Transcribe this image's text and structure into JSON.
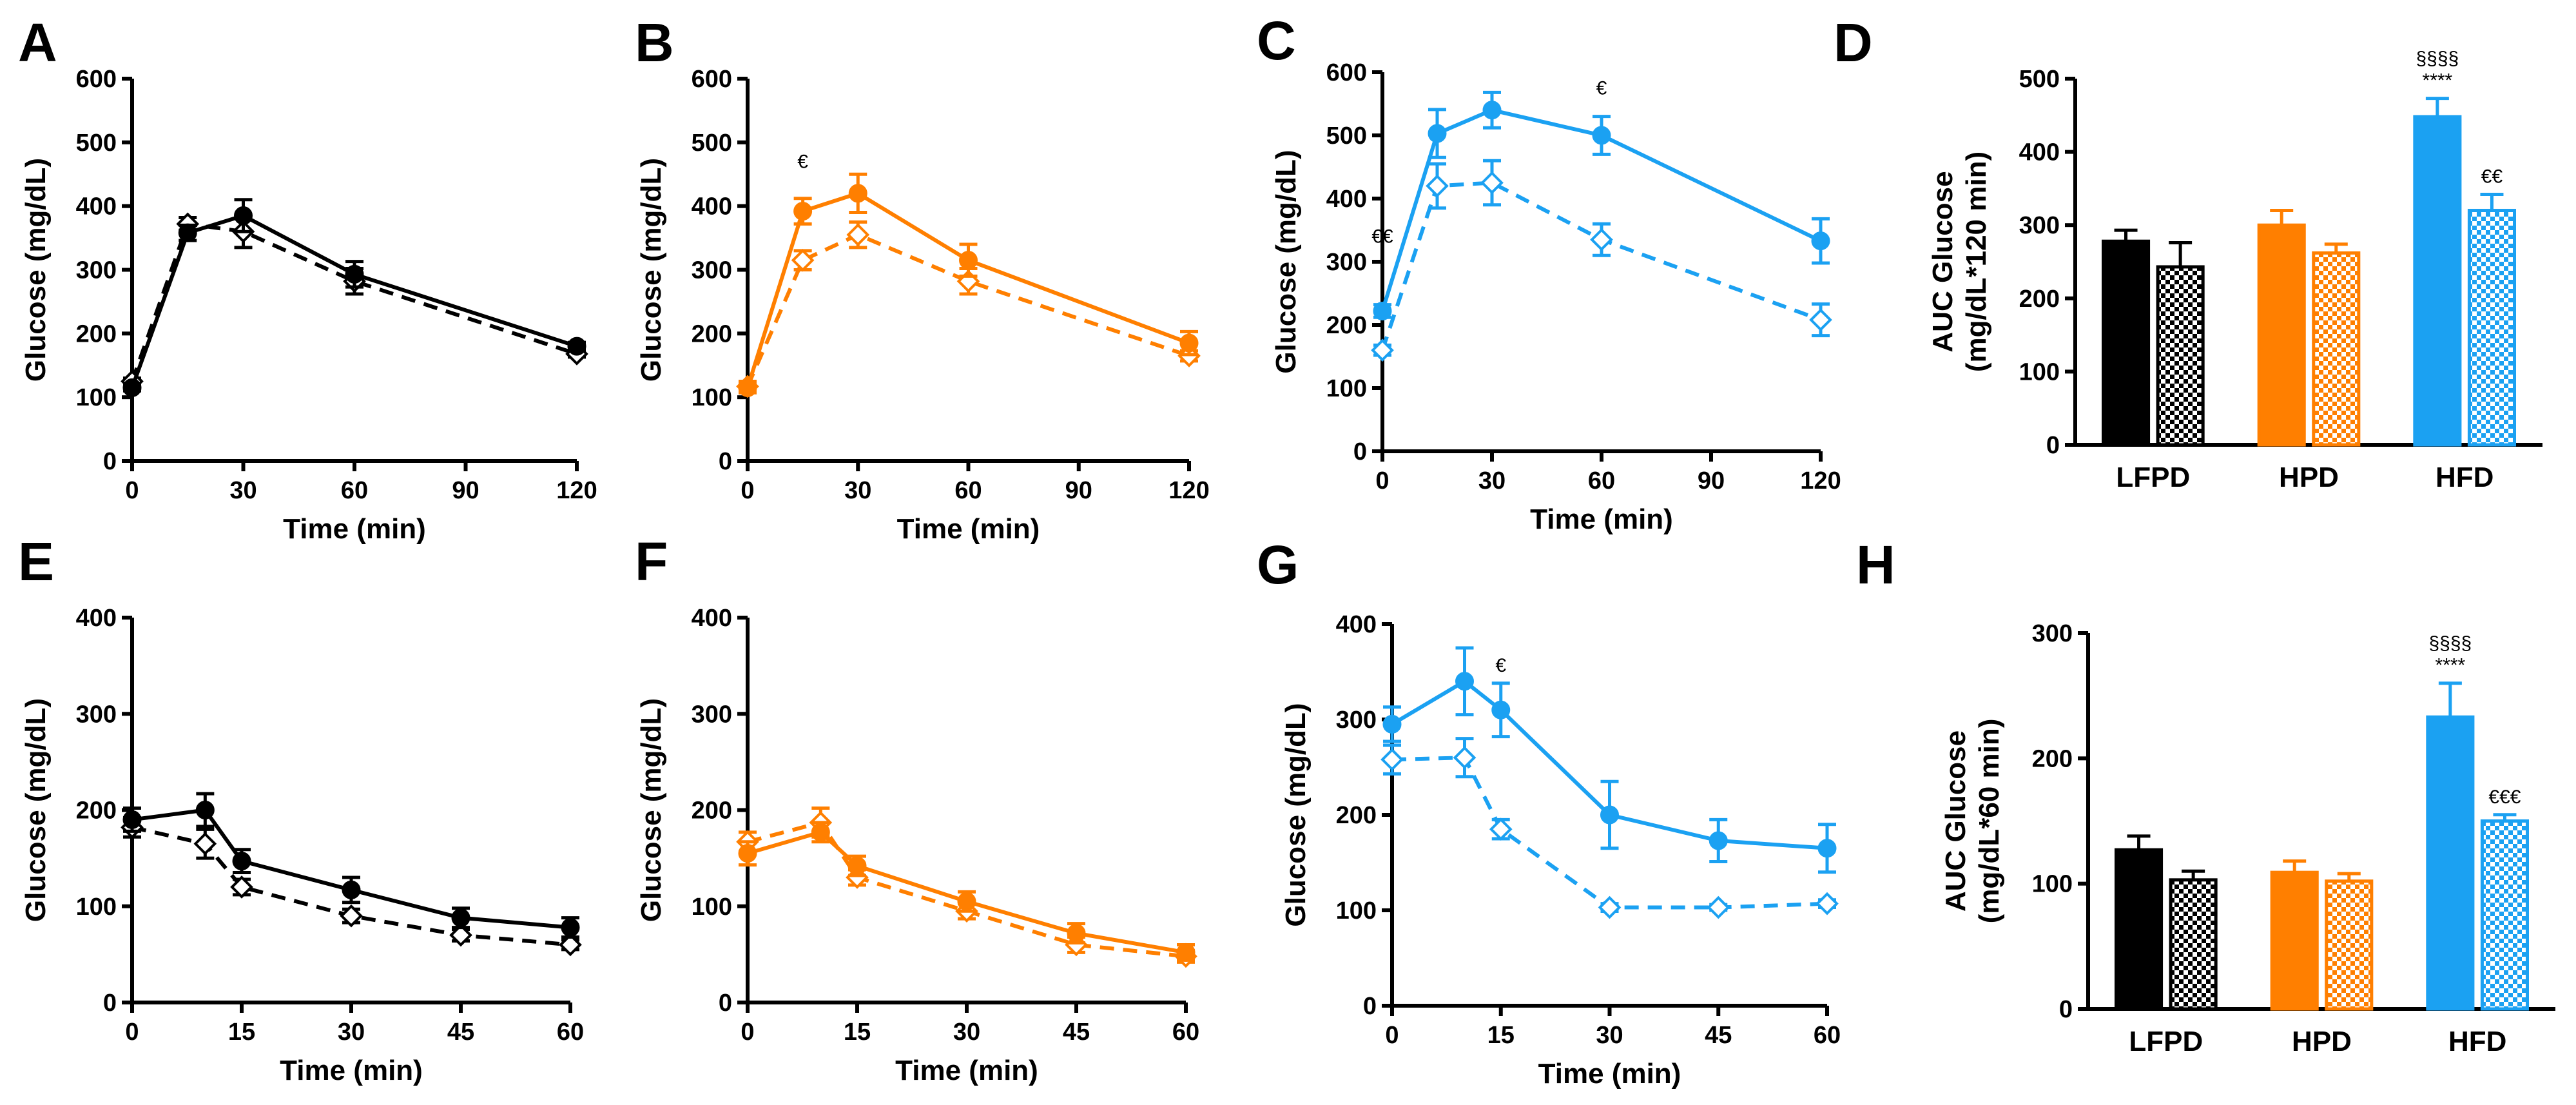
{
  "colors": {
    "lfpd": "#000000",
    "hpd": "#ff7f00",
    "hfd": "#1ba1f2"
  },
  "chart_data": [
    {
      "panel": "A",
      "type": "line",
      "color": "#000000",
      "x": [
        0,
        15,
        30,
        60,
        120
      ],
      "xlim": [
        0,
        120
      ],
      "xticks": [
        0,
        30,
        60,
        90,
        120
      ],
      "ylim": [
        0,
        600
      ],
      "yticks": [
        0,
        100,
        200,
        300,
        400,
        500,
        600
      ],
      "xlabel": "Time (min)",
      "ylabel": "Glucose (mg/dL)",
      "series": [
        {
          "style": "solid",
          "marker": "filled-circle",
          "values": [
            115,
            358,
            385,
            293,
            180
          ],
          "errors": [
            5,
            12,
            25,
            20,
            6
          ]
        },
        {
          "style": "dashed",
          "marker": "open-diamond",
          "values": [
            125,
            372,
            360,
            282,
            168
          ],
          "errors": [
            5,
            10,
            25,
            20,
            5
          ]
        }
      ],
      "annotations": []
    },
    {
      "panel": "B",
      "type": "line",
      "color": "#ff7f00",
      "x": [
        0,
        15,
        30,
        60,
        120
      ],
      "xlim": [
        0,
        120
      ],
      "xticks": [
        0,
        30,
        60,
        90,
        120
      ],
      "ylim": [
        0,
        600
      ],
      "yticks": [
        0,
        100,
        200,
        300,
        400,
        500,
        600
      ],
      "xlabel": "Time (min)",
      "ylabel": "Glucose (mg/dL)",
      "series": [
        {
          "style": "solid",
          "marker": "filled-circle",
          "values": [
            115,
            392,
            420,
            315,
            185
          ],
          "errors": [
            8,
            20,
            30,
            25,
            18
          ]
        },
        {
          "style": "dashed",
          "marker": "open-diamond",
          "values": [
            117,
            315,
            355,
            282,
            165
          ],
          "errors": [
            8,
            15,
            20,
            20,
            8
          ]
        }
      ],
      "annotations": [
        {
          "x": 15,
          "y": 460,
          "text": "€"
        }
      ]
    },
    {
      "panel": "C",
      "type": "line",
      "color": "#1ba1f2",
      "x": [
        0,
        15,
        30,
        60,
        120
      ],
      "xlim": [
        0,
        120
      ],
      "xticks": [
        0,
        30,
        60,
        90,
        120
      ],
      "ylim": [
        0,
        600
      ],
      "yticks": [
        0,
        100,
        200,
        300,
        400,
        500,
        600
      ],
      "xlabel": "Time (min)",
      "ylabel": "Glucose (mg/dL)",
      "series": [
        {
          "style": "solid",
          "marker": "filled-circle",
          "values": [
            222,
            503,
            540,
            500,
            333
          ],
          "errors": [
            10,
            38,
            28,
            30,
            35
          ]
        },
        {
          "style": "dashed",
          "marker": "open-diamond",
          "values": [
            160,
            420,
            425,
            335,
            208
          ],
          "errors": [
            8,
            35,
            35,
            25,
            25
          ]
        }
      ],
      "annotations": [
        {
          "x": 60,
          "y": 565,
          "text": "€"
        },
        {
          "x": 0,
          "y": 330,
          "text": "€€"
        }
      ]
    },
    {
      "panel": "D",
      "type": "bar",
      "categories": [
        "LFPD",
        "HPD",
        "HFD"
      ],
      "ylabel": "AUC Glucose\n(mg/dL*120 min)",
      "ylim": [
        0,
        500
      ],
      "yticks": [
        0,
        100,
        200,
        300,
        400,
        500
      ],
      "bars": [
        {
          "group": "LFPD",
          "color": "#000000",
          "pattern": "solid",
          "value": 278,
          "error": 15
        },
        {
          "group": "LFPD",
          "color": "#000000",
          "pattern": "checkered",
          "value": 243,
          "error": 33
        },
        {
          "group": "HPD",
          "color": "#ff7f00",
          "pattern": "solid",
          "value": 300,
          "error": 20
        },
        {
          "group": "HPD",
          "color": "#ff7f00",
          "pattern": "checkered",
          "value": 262,
          "error": 12
        },
        {
          "group": "HFD",
          "color": "#1ba1f2",
          "pattern": "solid",
          "value": 448,
          "error": 25,
          "annotation": [
            "§§§§",
            "****"
          ]
        },
        {
          "group": "HFD",
          "color": "#1ba1f2",
          "pattern": "checkered",
          "value": 320,
          "error": 22,
          "annotation": [
            "€€"
          ]
        }
      ]
    },
    {
      "panel": "E",
      "type": "line",
      "color": "#000000",
      "x": [
        0,
        10,
        15,
        30,
        45,
        60
      ],
      "xlim": [
        0,
        60
      ],
      "xticks": [
        0,
        15,
        30,
        45,
        60
      ],
      "ylim": [
        0,
        400
      ],
      "yticks": [
        0,
        100,
        200,
        300,
        400
      ],
      "xlabel": "Time (min)",
      "ylabel": "Glucose (mg/dL)",
      "series": [
        {
          "style": "solid",
          "marker": "filled-circle",
          "values": [
            190,
            200,
            147,
            117,
            88,
            78
          ],
          "errors": [
            12,
            17,
            12,
            13,
            10,
            10
          ]
        },
        {
          "style": "dashed",
          "marker": "open-diamond",
          "values": [
            182,
            165,
            120,
            90,
            70,
            60
          ],
          "errors": [
            10,
            15,
            8,
            7,
            6,
            5
          ]
        }
      ],
      "annotations": []
    },
    {
      "panel": "F",
      "type": "line",
      "color": "#ff7f00",
      "x": [
        0,
        10,
        15,
        30,
        45,
        60
      ],
      "xlim": [
        0,
        60
      ],
      "xticks": [
        0,
        15,
        30,
        45,
        60
      ],
      "ylim": [
        0,
        400
      ],
      "yticks": [
        0,
        100,
        200,
        300,
        400
      ],
      "xlabel": "Time (min)",
      "ylabel": "Glucose (mg/dL)",
      "series": [
        {
          "style": "solid",
          "marker": "filled-circle",
          "values": [
            155,
            177,
            142,
            105,
            72,
            52
          ],
          "errors": [
            12,
            10,
            10,
            10,
            10,
            8
          ]
        },
        {
          "style": "dashed",
          "marker": "open-diamond",
          "values": [
            167,
            187,
            130,
            95,
            60,
            48
          ],
          "errors": [
            10,
            15,
            8,
            8,
            8,
            6
          ]
        }
      ],
      "annotations": []
    },
    {
      "panel": "G",
      "type": "line",
      "color": "#1ba1f2",
      "x": [
        0,
        10,
        15,
        30,
        45,
        60
      ],
      "xlim": [
        0,
        60
      ],
      "xticks": [
        0,
        15,
        30,
        45,
        60
      ],
      "ylim": [
        0,
        400
      ],
      "yticks": [
        0,
        100,
        200,
        300,
        400
      ],
      "xlabel": "Time (min)",
      "ylabel": "Glucose (mg/dL)",
      "series": [
        {
          "style": "solid",
          "marker": "filled-circle",
          "values": [
            295,
            340,
            310,
            200,
            173,
            165
          ],
          "errors": [
            18,
            35,
            28,
            35,
            22,
            25
          ]
        },
        {
          "style": "dashed",
          "marker": "open-diamond",
          "values": [
            258,
            260,
            185,
            103,
            103,
            107
          ],
          "errors": [
            15,
            20,
            10,
            4,
            3,
            4
          ]
        }
      ],
      "annotations": [
        {
          "x": 15,
          "y": 350,
          "text": "€"
        }
      ]
    },
    {
      "panel": "H",
      "type": "bar",
      "categories": [
        "LFPD",
        "HPD",
        "HFD"
      ],
      "ylabel": "AUC Glucose\n(mg/dL*60 min)",
      "ylim": [
        0,
        300
      ],
      "yticks": [
        0,
        100,
        200,
        300
      ],
      "bars": [
        {
          "group": "LFPD",
          "color": "#000000",
          "pattern": "solid",
          "value": 127,
          "error": 11
        },
        {
          "group": "LFPD",
          "color": "#000000",
          "pattern": "checkered",
          "value": 103,
          "error": 7
        },
        {
          "group": "HPD",
          "color": "#ff7f00",
          "pattern": "solid",
          "value": 109,
          "error": 9
        },
        {
          "group": "HPD",
          "color": "#ff7f00",
          "pattern": "checkered",
          "value": 102,
          "error": 6
        },
        {
          "group": "HFD",
          "color": "#1ba1f2",
          "pattern": "solid",
          "value": 233,
          "error": 27,
          "annotation": [
            "§§§§",
            "****"
          ]
        },
        {
          "group": "HFD",
          "color": "#1ba1f2",
          "pattern": "checkered",
          "value": 150,
          "error": 5,
          "annotation": [
            "€€€"
          ]
        }
      ]
    }
  ]
}
